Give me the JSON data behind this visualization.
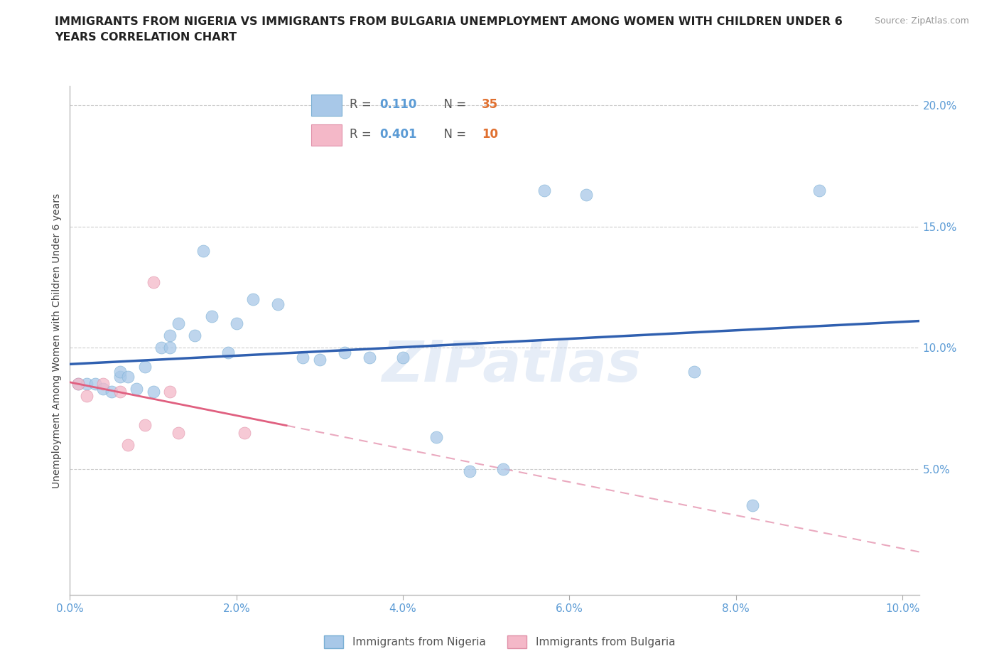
{
  "title_line1": "IMMIGRANTS FROM NIGERIA VS IMMIGRANTS FROM BULGARIA UNEMPLOYMENT AMONG WOMEN WITH CHILDREN UNDER 6",
  "title_line2": "YEARS CORRELATION CHART",
  "source": "Source: ZipAtlas.com",
  "ylabel": "Unemployment Among Women with Children Under 6 years",
  "nigeria_color": "#A8C8E8",
  "nigeria_edge_color": "#7AAFD4",
  "bulgaria_color": "#F4B8C8",
  "bulgaria_edge_color": "#E090A8",
  "nigeria_R": 0.11,
  "nigeria_N": 35,
  "bulgaria_R": 0.401,
  "bulgaria_N": 10,
  "nigeria_line_color": "#3060B0",
  "bulgaria_line_color": "#E06080",
  "bulgaria_dash_color": "#E8A0B8",
  "watermark": "ZIPatlas",
  "nigeria_x": [
    0.001,
    0.002,
    0.003,
    0.004,
    0.005,
    0.006,
    0.006,
    0.007,
    0.008,
    0.009,
    0.01,
    0.011,
    0.012,
    0.012,
    0.013,
    0.015,
    0.016,
    0.017,
    0.019,
    0.02,
    0.022,
    0.025,
    0.028,
    0.03,
    0.033,
    0.036,
    0.04,
    0.044,
    0.048,
    0.052,
    0.057,
    0.062,
    0.075,
    0.082,
    0.09
  ],
  "nigeria_y": [
    0.085,
    0.085,
    0.085,
    0.083,
    0.082,
    0.088,
    0.09,
    0.088,
    0.083,
    0.092,
    0.082,
    0.1,
    0.105,
    0.1,
    0.11,
    0.105,
    0.14,
    0.113,
    0.098,
    0.11,
    0.12,
    0.118,
    0.096,
    0.095,
    0.098,
    0.096,
    0.096,
    0.063,
    0.049,
    0.05,
    0.165,
    0.163,
    0.09,
    0.035,
    0.165
  ],
  "bulgaria_x": [
    0.001,
    0.002,
    0.004,
    0.006,
    0.007,
    0.009,
    0.01,
    0.012,
    0.013,
    0.021
  ],
  "bulgaria_y": [
    0.085,
    0.08,
    0.085,
    0.082,
    0.06,
    0.068,
    0.127,
    0.082,
    0.065,
    0.065
  ],
  "xlim": [
    0.0,
    0.102
  ],
  "ylim": [
    -0.002,
    0.208
  ],
  "x_ticks": [
    0.0,
    0.02,
    0.04,
    0.06,
    0.08,
    0.1
  ],
  "y_ticks": [
    0.0,
    0.05,
    0.1,
    0.15,
    0.2
  ]
}
